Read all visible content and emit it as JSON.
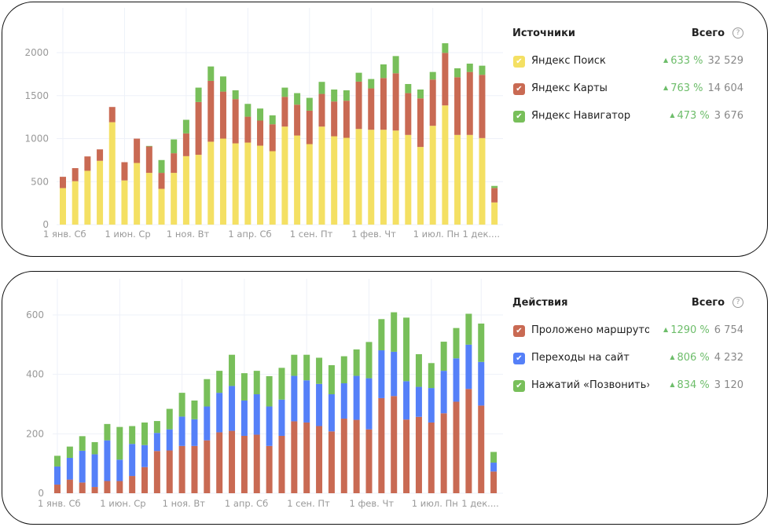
{
  "colors": {
    "yellow": "#f4e063",
    "red": "#c96a53",
    "green": "#78bf5a",
    "blue": "#5580f8",
    "delta": "#6dbd6a"
  },
  "panels": [
    {
      "title": "Источники",
      "total_label": "Всего",
      "help_icon": "question-circle-icon",
      "items": [
        {
          "label": "Яндекс Поиск",
          "color": "#f4e063",
          "delta": "633 %",
          "total": "32 529",
          "checked": true
        },
        {
          "label": "Яндекс Карты",
          "color": "#c96a53",
          "delta": "763 %",
          "total": "14 604",
          "checked": true
        },
        {
          "label": "Яндекс Навигатор",
          "color": "#78bf5a",
          "delta": "473 %",
          "total": "3 676",
          "checked": true
        }
      ]
    },
    {
      "title": "Действия",
      "total_label": "Всего",
      "help_icon": "question-circle-icon",
      "items": [
        {
          "label": "Проложено маршрутов",
          "color": "#c96a53",
          "delta": "1290 %",
          "total": "6 754",
          "checked": true
        },
        {
          "label": "Переходы на сайт",
          "color": "#5580f8",
          "delta": "806 %",
          "total": "4 232",
          "checked": true
        },
        {
          "label": "Нажатий «Позвонить»",
          "color": "#78bf5a",
          "delta": "834 %",
          "total": "3 120",
          "checked": true
        }
      ]
    }
  ],
  "chart_data": [
    {
      "type": "bar",
      "stacked": true,
      "ylim": [
        0,
        2000
      ],
      "yticks": [
        0,
        500,
        1000,
        1500,
        2000
      ],
      "grid": true,
      "xtick_labels": [
        "1 янв. Сб",
        "1 июн. Ср",
        "1 ноя. Вт",
        "1 апр. Сб",
        "1 сен. Пт",
        "1 фев. Чт",
        "1 июл. Пн",
        "1 дек...."
      ],
      "xtick_bar_index": [
        0,
        5,
        10,
        15,
        20,
        25,
        30,
        34
      ],
      "series": [
        {
          "name": "Яндекс Поиск",
          "color": "#f4e063",
          "values": [
            425,
            505,
            626,
            742,
            1191,
            514,
            717,
            602,
            416,
            602,
            796,
            812,
            964,
            1000,
            945,
            954,
            918,
            854,
            1140,
            1036,
            936,
            1140,
            1027,
            1009,
            1112,
            1103,
            1103,
            1094,
            1043,
            903,
            1149,
            1386,
            1043,
            1043,
            1006,
            258
          ]
        },
        {
          "name": "Яндекс Карты",
          "color": "#c96a53",
          "values": [
            131,
            152,
            167,
            133,
            177,
            212,
            283,
            307,
            186,
            228,
            265,
            614,
            708,
            547,
            514,
            301,
            292,
            313,
            346,
            359,
            389,
            380,
            405,
            432,
            551,
            481,
            602,
            666,
            486,
            565,
            538,
            611,
            671,
            732,
            736,
            168
          ]
        },
        {
          "name": "Яндекс Навигатор",
          "color": "#78bf5a",
          "values": [
            0,
            0,
            0,
            0,
            0,
            0,
            0,
            6,
            149,
            161,
            158,
            167,
            167,
            176,
            103,
            149,
            140,
            104,
            107,
            134,
            149,
            140,
            139,
            121,
            103,
            109,
            158,
            200,
            106,
            103,
            88,
            112,
            104,
            97,
            106,
            24
          ]
        }
      ]
    },
    {
      "type": "bar",
      "stacked": true,
      "ylim": [
        0,
        600
      ],
      "yticks": [
        0,
        200,
        400,
        600
      ],
      "grid": true,
      "xtick_labels": [
        "1 янв. Сб",
        "1 июн. Ср",
        "1 ноя. Вт",
        "1 апр. Сб",
        "1 сен. Пт",
        "1 фев. Чт",
        "1 июл. Пн",
        "1 дек...."
      ],
      "xtick_bar_index": [
        0,
        5,
        10,
        15,
        20,
        25,
        30,
        34
      ],
      "series": [
        {
          "name": "Проложено маршрутов",
          "color": "#c96a53",
          "values": [
            29,
            46,
            36,
            21,
            41,
            41,
            58,
            88,
            142,
            144,
            159,
            159,
            178,
            205,
            210,
            193,
            197,
            159,
            193,
            242,
            238,
            226,
            208,
            251,
            247,
            215,
            320,
            327,
            248,
            257,
            238,
            269,
            308,
            351,
            295,
            73
          ]
        },
        {
          "name": "Переходы на сайт",
          "color": "#5580f8",
          "values": [
            61,
            73,
            107,
            110,
            137,
            72,
            108,
            74,
            61,
            71,
            99,
            90,
            114,
            133,
            151,
            119,
            136,
            133,
            122,
            153,
            142,
            142,
            125,
            119,
            148,
            172,
            161,
            149,
            129,
            101,
            116,
            143,
            146,
            149,
            147,
            30
          ]
        },
        {
          "name": "Нажатий «Позвонить»",
          "color": "#78bf5a",
          "values": [
            36,
            38,
            49,
            41,
            55,
            110,
            60,
            76,
            40,
            69,
            80,
            63,
            92,
            74,
            105,
            92,
            79,
            102,
            107,
            71,
            86,
            88,
            98,
            91,
            89,
            122,
            105,
            133,
            214,
            110,
            84,
            98,
            102,
            104,
            129,
            36
          ]
        }
      ]
    }
  ]
}
